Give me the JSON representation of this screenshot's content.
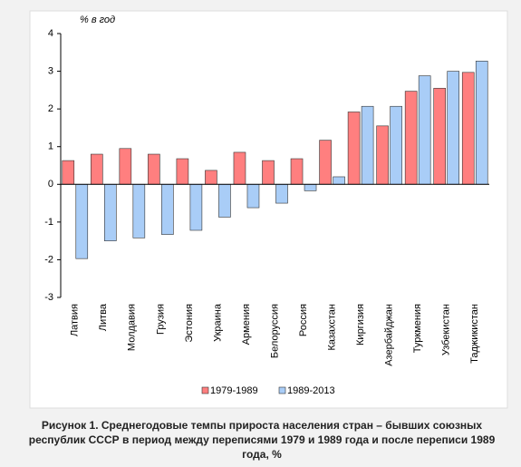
{
  "chart_data": {
    "type": "bar",
    "y_label": "% в год",
    "categories": [
      "Латвия",
      "Литва",
      "Молдавия",
      "Грузия",
      "Эстония",
      "Украина",
      "Армения",
      "Белоруссия",
      "Россия",
      "Казахстан",
      "Киргизия",
      "Азербайджан",
      "Туркмения",
      "Узбекистан",
      "Таджикистан"
    ],
    "series": [
      {
        "name": "1979-1989",
        "color": "#ff7f7f",
        "values": [
          0.63,
          0.8,
          0.95,
          0.8,
          0.68,
          0.37,
          0.85,
          0.63,
          0.68,
          1.17,
          1.92,
          1.55,
          2.47,
          2.55,
          2.97
        ]
      },
      {
        "name": "1989-2013",
        "color": "#a9cdf7",
        "values": [
          -1.97,
          -1.5,
          -1.42,
          -1.33,
          -1.22,
          -0.87,
          -0.62,
          -0.5,
          -0.17,
          0.2,
          2.07,
          2.07,
          2.88,
          3.0,
          3.27
        ]
      }
    ],
    "ylim": [
      -3,
      4
    ],
    "yticks": [
      -3,
      -2,
      -1,
      0,
      1,
      2,
      3,
      4
    ],
    "legend": "bottom",
    "caption": [
      "Рисунок 1. Среднегодовые темпы прироста населения стран – бывших союзных",
      "республик СССР в период между переписями 1979 и 1989 года и после переписи 1989",
      "года, %"
    ]
  }
}
